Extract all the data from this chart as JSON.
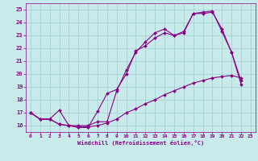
{
  "xlabel": "Windchill (Refroidissement éolien,°C)",
  "bg_color": "#c8eaea",
  "grid_color": "#a0cccc",
  "line_color": "#880088",
  "marker": "D",
  "markersize": 2.0,
  "linewidth": 0.8,
  "xlim": [
    -0.5,
    23.5
  ],
  "ylim": [
    15.5,
    25.5
  ],
  "xticks": [
    0,
    1,
    2,
    3,
    4,
    5,
    6,
    7,
    8,
    9,
    10,
    11,
    12,
    13,
    14,
    15,
    16,
    17,
    18,
    19,
    20,
    21,
    22,
    23
  ],
  "yticks": [
    16,
    17,
    18,
    19,
    20,
    21,
    22,
    23,
    24,
    25
  ],
  "line1_x": [
    0,
    1,
    2,
    3,
    4,
    5,
    6,
    7,
    8,
    9,
    10,
    11,
    12,
    13,
    14,
    15,
    16,
    17,
    18,
    19,
    20,
    21,
    22
  ],
  "line1_y": [
    17.0,
    16.5,
    16.5,
    16.1,
    16.0,
    15.85,
    15.85,
    17.1,
    18.5,
    18.8,
    20.0,
    21.8,
    22.2,
    22.8,
    23.2,
    23.0,
    23.3,
    24.7,
    24.8,
    24.9,
    23.3,
    21.7,
    19.5
  ],
  "line2_x": [
    0,
    1,
    2,
    3,
    4,
    5,
    6,
    7,
    8,
    9,
    10,
    11,
    12,
    13,
    14,
    15,
    16,
    17,
    18,
    19,
    20,
    21,
    22
  ],
  "line2_y": [
    17.0,
    16.5,
    16.5,
    17.2,
    16.0,
    16.0,
    16.0,
    16.3,
    16.3,
    18.7,
    20.3,
    21.7,
    22.5,
    23.2,
    23.5,
    23.0,
    23.2,
    24.7,
    24.7,
    24.8,
    23.5,
    21.7,
    19.2
  ],
  "line3_x": [
    0,
    1,
    2,
    3,
    4,
    5,
    6,
    7,
    8,
    9,
    10,
    11,
    12,
    13,
    14,
    15,
    16,
    17,
    18,
    19,
    20,
    21,
    22
  ],
  "line3_y": [
    17.0,
    16.5,
    16.5,
    16.1,
    16.0,
    15.9,
    15.9,
    16.0,
    16.2,
    16.5,
    17.0,
    17.3,
    17.7,
    18.0,
    18.4,
    18.7,
    19.0,
    19.3,
    19.5,
    19.7,
    19.8,
    19.9,
    19.7
  ]
}
